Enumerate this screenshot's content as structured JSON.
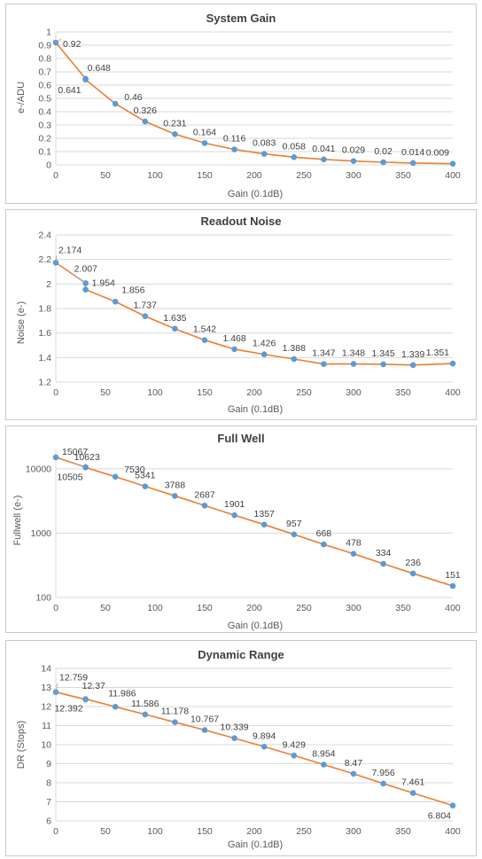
{
  "style": {
    "line_color": "#ed7d31",
    "marker_color": "#5b9bd5",
    "grid_color": "#d9d9d9",
    "text_color": "#595959"
  },
  "chart_data": [
    {
      "id": "system-gain",
      "type": "line",
      "title": "System Gain",
      "xlabel": "Gain (0.1dB)",
      "ylabel": "e-/ADU",
      "xlim": [
        0,
        400
      ],
      "ylim": [
        0,
        1
      ],
      "xticks": [
        0,
        50,
        100,
        150,
        200,
        250,
        300,
        350,
        400
      ],
      "yticks": [
        0,
        0.1,
        0.2,
        0.3,
        0.4,
        0.5,
        0.6,
        0.7,
        0.8,
        0.9,
        1
      ],
      "ytick_labels": [
        "0",
        "0.1",
        "0.2",
        "0.3",
        "0.4",
        "0.5",
        "0.6",
        "0.7",
        "0.8",
        "0.9",
        "1"
      ],
      "yscale": "linear",
      "grid": true,
      "x": [
        0,
        30,
        30,
        60,
        90,
        120,
        150,
        180,
        210,
        240,
        270,
        300,
        330,
        360,
        400
      ],
      "y": [
        0.92,
        0.648,
        0.641,
        0.46,
        0.326,
        0.231,
        0.164,
        0.116,
        0.083,
        0.058,
        0.041,
        0.029,
        0.02,
        0.014,
        0.009
      ],
      "labels": [
        "0.92",
        "0.648",
        "0.641",
        "0.46",
        "0.326",
        "0.231",
        "0.164",
        "0.116",
        "0.083",
        "0.058",
        "0.041",
        "0.029",
        "0.02",
        "0.014",
        "0.009"
      ]
    },
    {
      "id": "readout-noise",
      "type": "line",
      "title": "Readout Noise",
      "xlabel": "Gain (0.1dB)",
      "ylabel": "Noise (e-)",
      "xlim": [
        0,
        400
      ],
      "ylim": [
        1.2,
        2.4
      ],
      "xticks": [
        0,
        50,
        100,
        150,
        200,
        250,
        300,
        350,
        400
      ],
      "yticks": [
        1.2,
        1.4,
        1.6,
        1.8,
        2,
        2.2,
        2.4
      ],
      "ytick_labels": [
        "1.2",
        "1.4",
        "1.6",
        "1.8",
        "2",
        "2.2",
        "2.4"
      ],
      "yscale": "linear",
      "grid": true,
      "x": [
        0,
        30,
        30,
        60,
        90,
        120,
        150,
        180,
        210,
        240,
        270,
        300,
        330,
        360,
        400
      ],
      "y": [
        2.174,
        2.007,
        1.954,
        1.856,
        1.737,
        1.635,
        1.542,
        1.468,
        1.426,
        1.388,
        1.347,
        1.348,
        1.345,
        1.339,
        1.351
      ],
      "labels": [
        "2.174",
        "2.007",
        "1.954",
        "1.856",
        "1.737",
        "1.635",
        "1.542",
        "1.468",
        "1.426",
        "1.388",
        "1.347",
        "1.348",
        "1.345",
        "1.339",
        "1.351"
      ]
    },
    {
      "id": "full-well",
      "type": "line",
      "title": "Full Well",
      "xlabel": "Gain (0.1dB)",
      "ylabel": "Fullwell (e-)",
      "xlim": [
        0,
        400
      ],
      "ylim": [
        100,
        20000
      ],
      "xticks": [
        0,
        50,
        100,
        150,
        200,
        250,
        300,
        350,
        400
      ],
      "yticks": [
        100,
        1000,
        10000
      ],
      "ytick_labels": [
        "100",
        "1000",
        "10000"
      ],
      "yscale": "log",
      "grid": true,
      "x": [
        0,
        30,
        30,
        60,
        90,
        120,
        150,
        180,
        210,
        240,
        270,
        300,
        330,
        360,
        400
      ],
      "y": [
        15067,
        10623,
        10505,
        7530,
        5341,
        3788,
        2687,
        1901,
        1357,
        957,
        668,
        478,
        334,
        236,
        151
      ],
      "labels": [
        "15067",
        "10623",
        "10505",
        "7530",
        "5341",
        "3788",
        "2687",
        "1901",
        "1357",
        "957",
        "668",
        "478",
        "334",
        "236",
        "151"
      ]
    },
    {
      "id": "dynamic-range",
      "type": "line",
      "title": "Dynamic Range",
      "xlabel": "Gain (0.1dB)",
      "ylabel": "DR (Stops)",
      "xlim": [
        0,
        400
      ],
      "ylim": [
        6,
        14
      ],
      "xticks": [
        0,
        50,
        100,
        150,
        200,
        250,
        300,
        350,
        400
      ],
      "yticks": [
        6,
        7,
        8,
        9,
        10,
        11,
        12,
        13,
        14
      ],
      "ytick_labels": [
        "6",
        "7",
        "8",
        "9",
        "10",
        "11",
        "12",
        "13",
        "14"
      ],
      "yscale": "linear",
      "grid": true,
      "x": [
        0,
        30,
        30,
        60,
        90,
        120,
        150,
        180,
        210,
        240,
        270,
        300,
        330,
        360,
        400
      ],
      "y": [
        12.759,
        12.37,
        12.392,
        11.986,
        11.586,
        11.178,
        10.767,
        10.339,
        9.894,
        9.429,
        8.954,
        8.47,
        7.956,
        7.461,
        6.804
      ],
      "labels": [
        "12.759",
        "12.37",
        "12.392",
        "11.986",
        "11.586",
        "11.178",
        "10.767",
        "10.339",
        "9.894",
        "9.429",
        "8.954",
        "8.47",
        "7.956",
        "7.461",
        "6.804"
      ]
    }
  ]
}
